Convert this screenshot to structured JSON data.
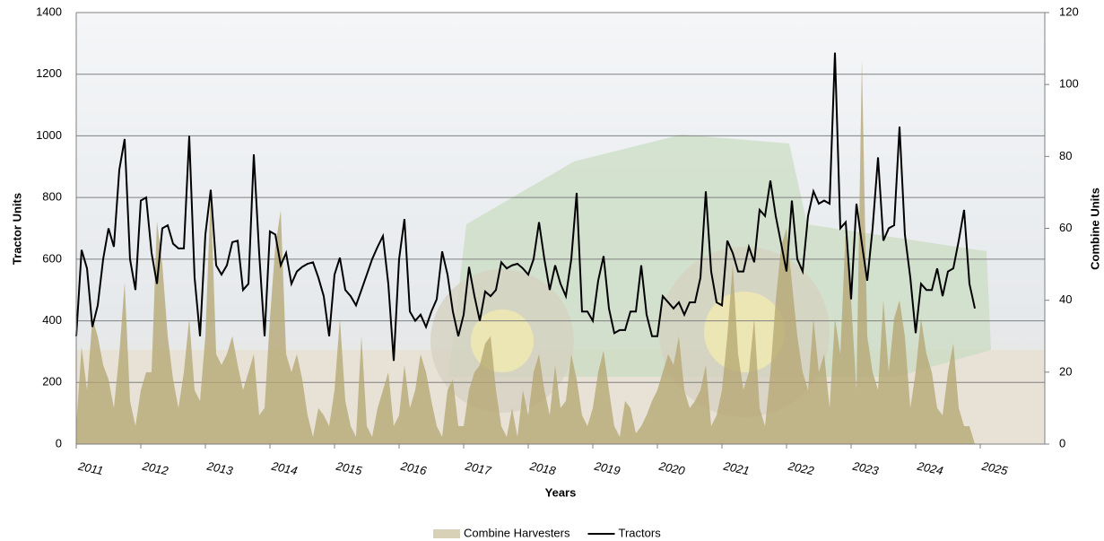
{
  "chart_data": {
    "type": "combo",
    "x_label": "Years",
    "y_label": "Tractor Units",
    "y2_label": "Combine Units",
    "xlim": [
      2011,
      2026
    ],
    "xticks": [
      2011,
      2012,
      2013,
      2014,
      2015,
      2016,
      2017,
      2018,
      2019,
      2020,
      2021,
      2022,
      2023,
      2024,
      2025
    ],
    "ylim": [
      0,
      1400
    ],
    "yticks": [
      0,
      200,
      400,
      600,
      800,
      1000,
      1200,
      1400
    ],
    "y2lim": [
      0,
      120
    ],
    "y2ticks": [
      0,
      20,
      40,
      60,
      80,
      100,
      120
    ],
    "grid": true,
    "legend": "bottom",
    "x": [
      2011,
      2011.083,
      2011.167,
      2011.25,
      2011.333,
      2011.417,
      2011.5,
      2011.583,
      2011.667,
      2011.75,
      2011.833,
      2011.917,
      2012,
      2012.083,
      2012.167,
      2012.25,
      2012.333,
      2012.417,
      2012.5,
      2012.583,
      2012.667,
      2012.75,
      2012.833,
      2012.917,
      2013,
      2013.083,
      2013.167,
      2013.25,
      2013.333,
      2013.417,
      2013.5,
      2013.583,
      2013.667,
      2013.75,
      2013.833,
      2013.917,
      2014,
      2014.083,
      2014.167,
      2014.25,
      2014.333,
      2014.417,
      2014.5,
      2014.583,
      2014.667,
      2014.75,
      2014.833,
      2014.917,
      2015,
      2015.083,
      2015.167,
      2015.25,
      2015.333,
      2015.417,
      2015.5,
      2015.583,
      2015.667,
      2015.75,
      2015.833,
      2015.917,
      2016,
      2016.083,
      2016.167,
      2016.25,
      2016.333,
      2016.417,
      2016.5,
      2016.583,
      2016.667,
      2016.75,
      2016.833,
      2016.917,
      2017,
      2017.083,
      2017.167,
      2017.25,
      2017.333,
      2017.417,
      2017.5,
      2017.583,
      2017.667,
      2017.75,
      2017.833,
      2017.917,
      2018,
      2018.083,
      2018.167,
      2018.25,
      2018.333,
      2018.417,
      2018.5,
      2018.583,
      2018.667,
      2018.75,
      2018.833,
      2018.917,
      2019,
      2019.083,
      2019.167,
      2019.25,
      2019.333,
      2019.417,
      2019.5,
      2019.583,
      2019.667,
      2019.75,
      2019.833,
      2019.917,
      2020,
      2020.083,
      2020.167,
      2020.25,
      2020.333,
      2020.417,
      2020.5,
      2020.583,
      2020.667,
      2020.75,
      2020.833,
      2020.917,
      2021,
      2021.083,
      2021.167,
      2021.25,
      2021.333,
      2021.417,
      2021.5,
      2021.583,
      2021.667,
      2021.75,
      2021.833,
      2021.917,
      2022,
      2022.083,
      2022.167,
      2022.25,
      2022.333,
      2022.417,
      2022.5,
      2022.583,
      2022.667,
      2022.75,
      2022.833,
      2022.917,
      2023,
      2023.083,
      2023.167,
      2023.25,
      2023.333,
      2023.417,
      2023.5,
      2023.583,
      2023.667,
      2023.75,
      2023.833,
      2023.917,
      2024,
      2024.083,
      2024.167,
      2024.25,
      2024.333,
      2024.417,
      2024.5,
      2024.583,
      2024.667,
      2024.75,
      2024.833,
      2024.917
    ],
    "series": [
      {
        "name": "Combine Harvesters",
        "type": "area",
        "axis": "y2",
        "color": "#b3a46f",
        "values": [
          5,
          27,
          15,
          35,
          30,
          22,
          18,
          10,
          25,
          45,
          12,
          5,
          15,
          20,
          20,
          62,
          50,
          30,
          18,
          10,
          20,
          35,
          15,
          12,
          30,
          70,
          25,
          22,
          25,
          30,
          22,
          15,
          20,
          25,
          8,
          10,
          35,
          55,
          65,
          25,
          20,
          25,
          18,
          8,
          2,
          10,
          8,
          5,
          15,
          35,
          12,
          5,
          2,
          30,
          5,
          2,
          10,
          15,
          20,
          5,
          8,
          22,
          10,
          15,
          25,
          20,
          12,
          5,
          2,
          15,
          18,
          5,
          5,
          15,
          20,
          22,
          28,
          30,
          15,
          5,
          2,
          10,
          2,
          15,
          8,
          20,
          25,
          15,
          8,
          22,
          10,
          12,
          25,
          18,
          8,
          5,
          10,
          20,
          26,
          15,
          5,
          2,
          12,
          10,
          3,
          5,
          8,
          12,
          15,
          20,
          25,
          22,
          30,
          15,
          10,
          12,
          15,
          22,
          5,
          8,
          15,
          30,
          50,
          25,
          15,
          20,
          35,
          10,
          5,
          20,
          40,
          55,
          60,
          45,
          30,
          20,
          15,
          35,
          20,
          25,
          10,
          35,
          25,
          60,
          40,
          15,
          107,
          30,
          20,
          15,
          40,
          20,
          35,
          40,
          30,
          10,
          20,
          35,
          25,
          20,
          10,
          8,
          20,
          28,
          10,
          5,
          5,
          0
        ]
      },
      {
        "name": "Tractors",
        "type": "line",
        "color": "#000000",
        "values": [
          350,
          630,
          570,
          380,
          450,
          600,
          700,
          640,
          890,
          990,
          600,
          500,
          790,
          800,
          620,
          520,
          700,
          710,
          650,
          635,
          635,
          1000,
          540,
          350,
          680,
          825,
          580,
          550,
          580,
          655,
          660,
          500,
          520,
          940,
          620,
          350,
          690,
          680,
          580,
          620,
          520,
          560,
          575,
          585,
          590,
          540,
          480,
          350,
          550,
          605,
          500,
          480,
          450,
          500,
          550,
          600,
          640,
          675,
          520,
          270,
          600,
          730,
          430,
          400,
          420,
          380,
          430,
          470,
          625,
          550,
          430,
          350,
          420,
          575,
          480,
          400,
          495,
          480,
          500,
          590,
          570,
          580,
          585,
          570,
          550,
          600,
          720,
          600,
          500,
          580,
          520,
          480,
          600,
          815,
          430,
          430,
          400,
          530,
          610,
          440,
          360,
          370,
          370,
          430,
          430,
          580,
          420,
          350,
          350,
          480,
          460,
          440,
          460,
          420,
          460,
          460,
          540,
          820,
          560,
          460,
          450,
          660,
          620,
          560,
          560,
          640,
          590,
          760,
          740,
          855,
          740,
          650,
          560,
          790,
          600,
          560,
          740,
          820,
          780,
          790,
          780,
          1270,
          700,
          720,
          470,
          780,
          650,
          530,
          700,
          930,
          660,
          700,
          710,
          1030,
          680,
          540,
          360,
          520,
          500,
          500,
          570,
          480,
          560,
          570,
          660,
          760,
          520,
          440
        ]
      }
    ]
  }
}
